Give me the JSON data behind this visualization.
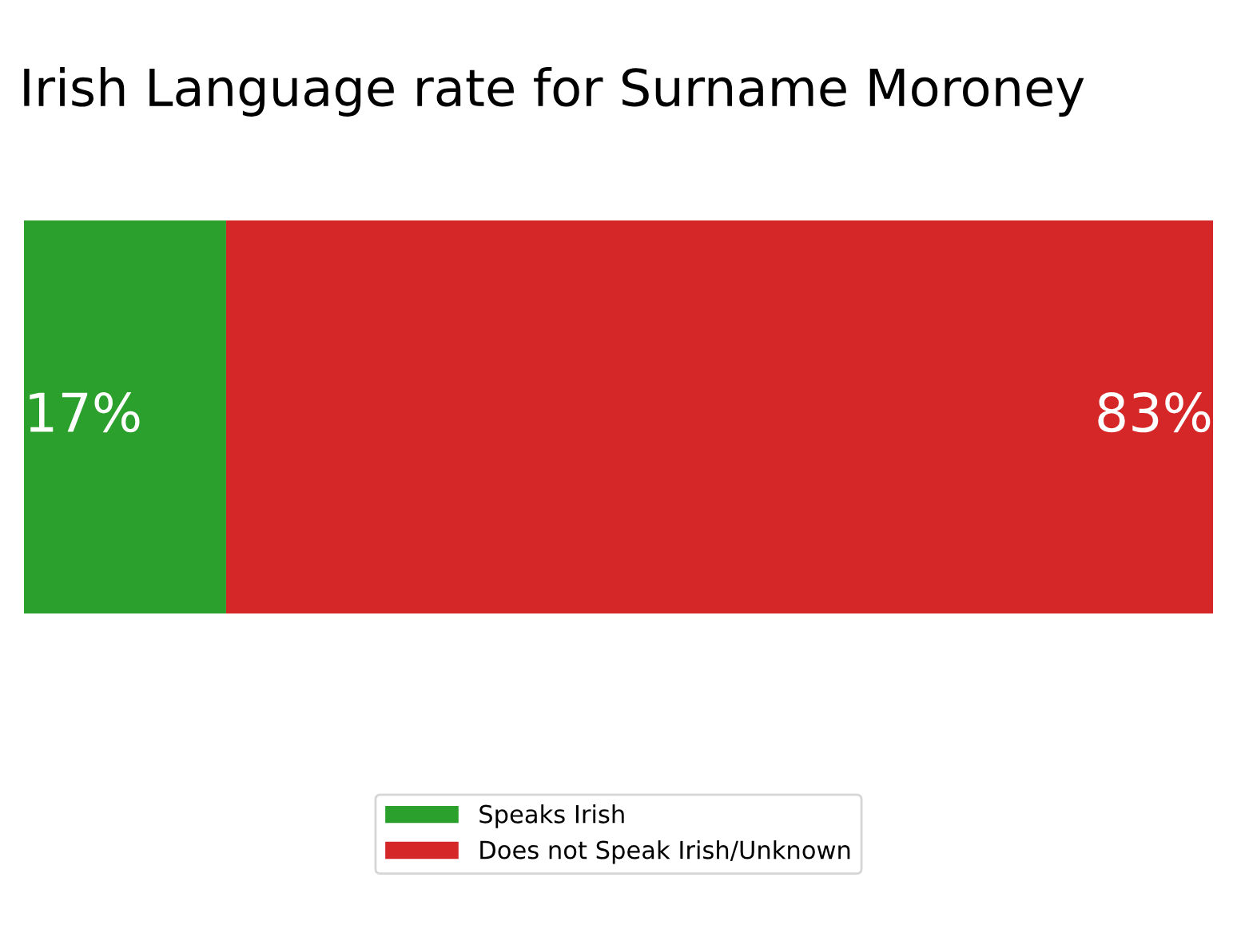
{
  "chart_data": {
    "type": "bar",
    "orientation": "horizontal",
    "stacked": true,
    "title": "Irish Language rate for Surname Moroney",
    "categories": [
      null
    ],
    "series": [
      {
        "name": "Speaks Irish",
        "color": "#2ca02c",
        "values": [
          17
        ],
        "value_labels": [
          "17%"
        ]
      },
      {
        "name": "Does not Speak Irish/Unknown",
        "color": "#d62728",
        "values": [
          83
        ],
        "value_labels": [
          "83%"
        ]
      }
    ],
    "legend": "bottom"
  }
}
